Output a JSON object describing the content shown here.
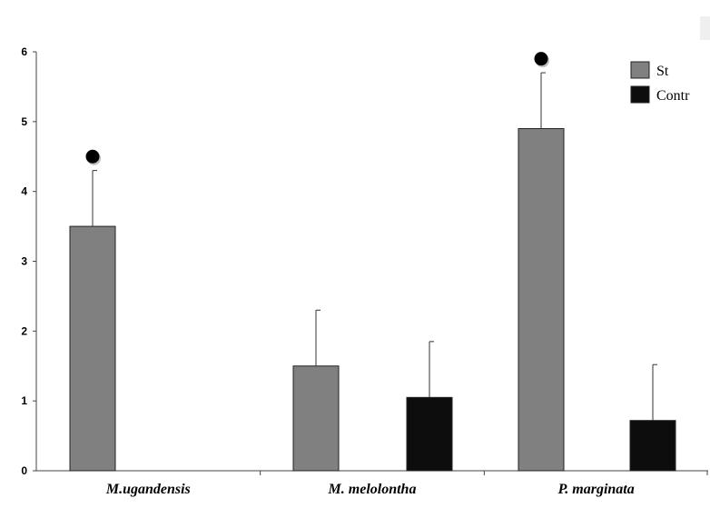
{
  "chart_data": {
    "type": "bar",
    "title": "",
    "xlabel": "",
    "ylabel": "",
    "ylim": [
      0,
      6
    ],
    "yticks": [
      0,
      1,
      2,
      3,
      4,
      5,
      6
    ],
    "ytick_labels": [
      "0",
      "1",
      "2",
      "3",
      "4",
      "5",
      "6"
    ],
    "categories": [
      "M.ugandensis",
      "M. melolontha",
      "P. marginata"
    ],
    "series": [
      {
        "name": "St",
        "color": "#808080",
        "values": [
          3.5,
          1.5,
          4.9
        ],
        "errors": [
          0.8,
          0.8,
          0.8
        ]
      },
      {
        "name": "Contr",
        "color": "#0d0d0d",
        "values": [
          0,
          1.05,
          0.72
        ],
        "errors": [
          0,
          0.8,
          0.8
        ]
      }
    ],
    "significance_markers": [
      {
        "category": "M.ugandensis",
        "series": "St",
        "y": 4.5
      },
      {
        "category": "P. marginata",
        "series": "St",
        "y": 5.9
      }
    ],
    "legend_position": "top-right",
    "grid": false
  }
}
